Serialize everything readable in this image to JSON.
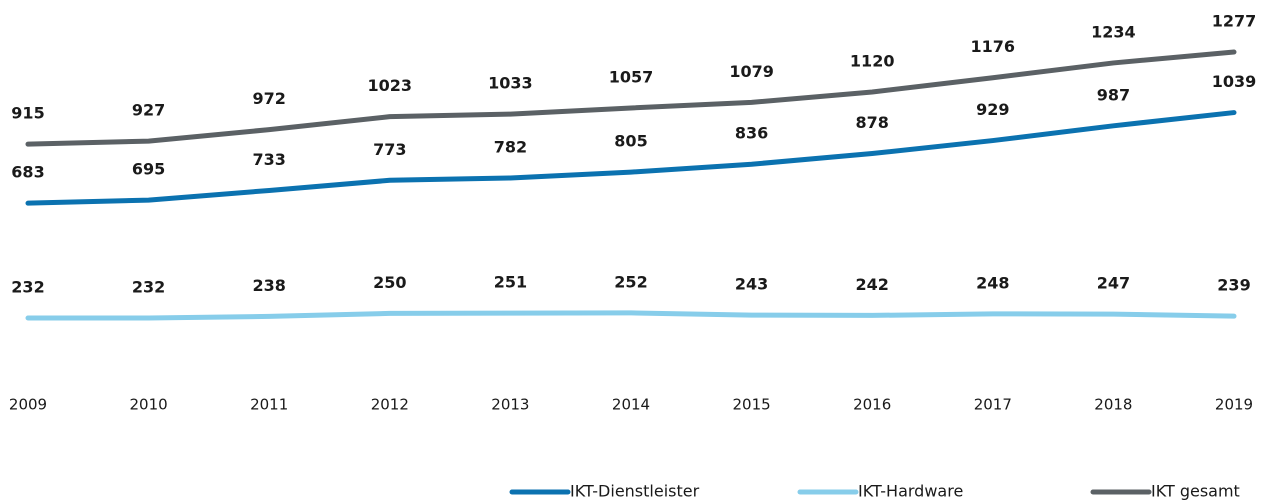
{
  "chart_data": {
    "type": "line",
    "categories": [
      "2009",
      "2010",
      "2011",
      "2012",
      "2013",
      "2014",
      "2015",
      "2016",
      "2017",
      "2018",
      "2019"
    ],
    "series": [
      {
        "name": "IKT-Dienstleister",
        "color": "#0b72b0",
        "values": [
          683,
          695,
          733,
          773,
          782,
          805,
          836,
          878,
          929,
          987,
          1039
        ]
      },
      {
        "name": "IKT-Hardware",
        "color": "#87cdea",
        "values": [
          232,
          232,
          238,
          250,
          251,
          252,
          243,
          242,
          248,
          247,
          239
        ]
      },
      {
        "name": "IKT gesamt",
        "color": "#5b6165",
        "values": [
          915,
          927,
          972,
          1023,
          1033,
          1057,
          1079,
          1120,
          1176,
          1234,
          1277
        ]
      }
    ]
  }
}
